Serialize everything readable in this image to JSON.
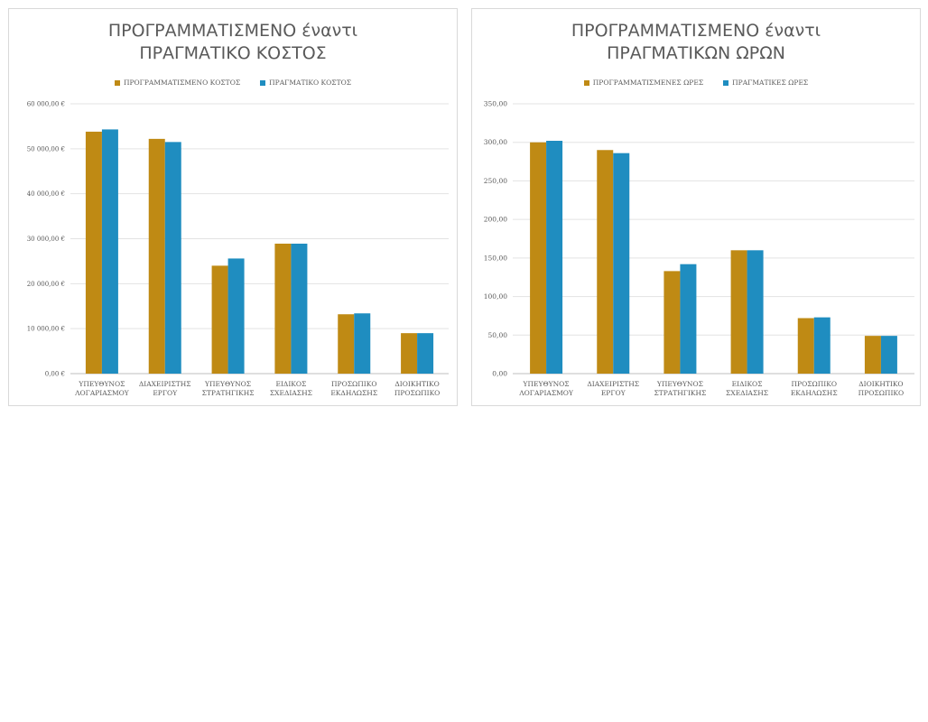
{
  "colors": {
    "planned": "#BF8A14",
    "actual": "#1F8DC0",
    "grid": "#e3e3e3",
    "axis": "#bfbfbf"
  },
  "chart_data": [
    {
      "type": "bar",
      "title": [
        "ΠΡΟΓΡΑΜΜΑΤΙΣΜΕΝΟ έναντι",
        "ΠΡΑΓΜΑΤΙΚΟ ΚΟΣΤΟΣ"
      ],
      "legend_position": "top",
      "grid": true,
      "ylim": [
        0,
        60000
      ],
      "yticks": [
        0,
        10000,
        20000,
        30000,
        40000,
        50000,
        60000
      ],
      "ytick_labels": [
        "0,00 €",
        "10 000,00 €",
        "20 000,00 €",
        "30 000,00 €",
        "40 000,00 €",
        "50 000,00 €",
        "60 000,00 €"
      ],
      "categories": [
        [
          "ΥΠΕΥΘΥΝΟΣ",
          "ΛΟΓΑΡΙΑΣΜΟΥ"
        ],
        [
          "ΔΙΑΧΕΙΡΙΣΤΗΣ",
          "ΕΡΓΟΥ"
        ],
        [
          "ΥΠΕΥΘΥΝΟΣ",
          "ΣΤΡΑΤΗΓΙΚΗΣ"
        ],
        [
          "ΕΙΔΙΚΟΣ",
          "ΣΧΕΔΙΑΣΗΣ"
        ],
        [
          "ΠΡΟΣΩΠΙΚΟ",
          "ΕΚΔΗΛΩΣΗΣ"
        ],
        [
          "ΔΙΟΙΚΗΤΙΚΟ",
          "ΠΡΟΣΩΠΙΚΟ"
        ]
      ],
      "series": [
        {
          "name": "ΠΡΟΓΡΑΜΜΑΤΙΣΜΕΝΟ ΚΟΣΤΟΣ",
          "color": "#BF8A14",
          "values": [
            53800,
            52200,
            24000,
            28900,
            13200,
            9000
          ]
        },
        {
          "name": "ΠΡΑΓΜΑΤΙΚΟ ΚΟΣΤΟΣ",
          "color": "#1F8DC0",
          "values": [
            54300,
            51500,
            25600,
            28900,
            13400,
            9000
          ]
        }
      ]
    },
    {
      "type": "bar",
      "title": [
        "ΠΡΟΓΡΑΜΜΑΤΙΣΜΕΝΟ έναντι",
        "ΠΡΑΓΜΑΤΙΚΩΝ ΩΡΩΝ"
      ],
      "legend_position": "top",
      "grid": true,
      "ylim": [
        0,
        350
      ],
      "yticks": [
        0,
        50,
        100,
        150,
        200,
        250,
        300,
        350
      ],
      "ytick_labels": [
        "0,00",
        "50,00",
        "100,00",
        "150,00",
        "200,00",
        "250,00",
        "300,00",
        "350,00"
      ],
      "categories": [
        [
          "ΥΠΕΥΘΥΝΟΣ",
          "ΛΟΓΑΡΙΑΣΜΟΥ"
        ],
        [
          "ΔΙΑΧΕΙΡΙΣΤΗΣ",
          "ΕΡΓΟΥ"
        ],
        [
          "ΥΠΕΥΘΥΝΟΣ",
          "ΣΤΡΑΤΗΓΙΚΗΣ"
        ],
        [
          "ΕΙΔΙΚΟΣ",
          "ΣΧΕΔΙΑΣΗΣ"
        ],
        [
          "ΠΡΟΣΩΠΙΚΟ",
          "ΕΚΔΗΛΩΣΗΣ"
        ],
        [
          "ΔΙΟΙΚΗΤΙΚΟ",
          "ΠΡΟΣΩΠΙΚΟ"
        ]
      ],
      "series": [
        {
          "name": "ΠΡΟΓΡΑΜΜΑΤΙΣΜΕΝΕΣ ΩΡΕΣ",
          "color": "#BF8A14",
          "values": [
            300,
            290,
            133,
            160,
            72,
            49
          ]
        },
        {
          "name": "ΠΡΑΓΜΑΤΙΚΕΣ ΩΡΕΣ",
          "color": "#1F8DC0",
          "values": [
            302,
            286,
            142,
            160,
            73,
            49
          ]
        }
      ]
    }
  ]
}
